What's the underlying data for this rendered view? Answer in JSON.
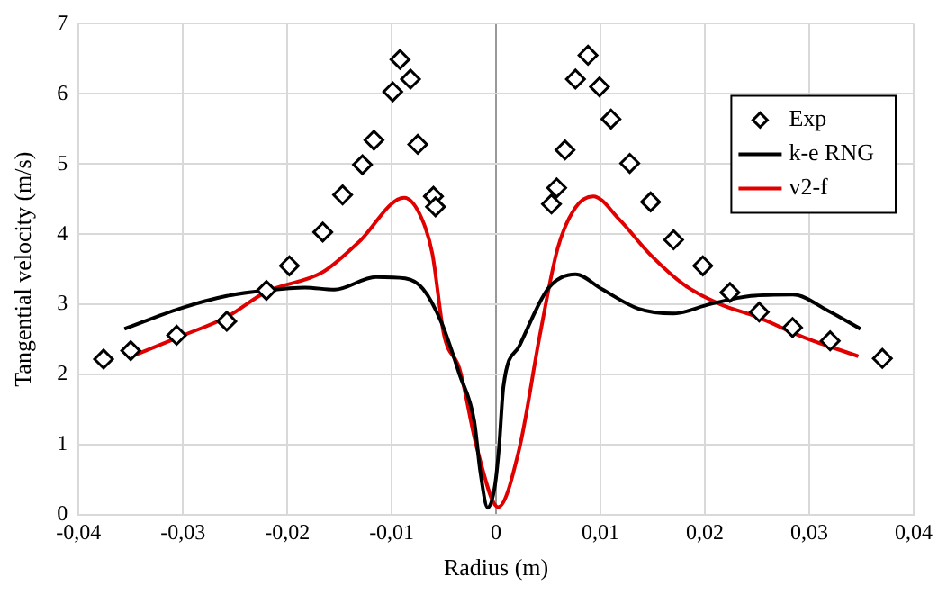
{
  "chart_data": {
    "type": "line",
    "xlabel": "Radius (m)",
    "ylabel": "Tangential velocity (m/s)",
    "xlim": [
      -0.04,
      0.04
    ],
    "xticks": [
      {
        "value": -0.04,
        "label": "-0,04"
      },
      {
        "value": -0.03,
        "label": "-0,03"
      },
      {
        "value": -0.02,
        "label": "-0,02"
      },
      {
        "value": -0.01,
        "label": "-0,01"
      },
      0,
      {
        "value": 0.01,
        "label": "0,01"
      },
      {
        "value": 0.02,
        "label": "0,02"
      },
      {
        "value": 0.03,
        "label": "0,03"
      },
      {
        "value": 0.04,
        "label": "0,04"
      }
    ],
    "ylim": [
      0,
      7
    ],
    "yticks": [
      0,
      1,
      2,
      3,
      4,
      5,
      6,
      7
    ],
    "grid": true,
    "legend": "top right",
    "series": [
      {
        "name": "Exp",
        "type": "scatter",
        "marker": "diamond",
        "color": "#000000",
        "x": [
          -0.0376,
          -0.035,
          -0.0306,
          -0.0258,
          -0.022,
          -0.0198,
          -0.0166,
          -0.0147,
          -0.0128,
          -0.0117,
          -0.0099,
          -0.0092,
          -0.0082,
          -0.0075,
          -0.006,
          -0.0058,
          0.0053,
          0.0058,
          0.0066,
          0.0076,
          0.0088,
          0.0099,
          0.011,
          0.0128,
          0.0148,
          0.017,
          0.0198,
          0.0224,
          0.0252,
          0.0284,
          0.032,
          0.037
        ],
        "values": [
          2.22,
          2.34,
          2.56,
          2.76,
          3.2,
          3.55,
          4.03,
          4.56,
          4.99,
          5.34,
          6.03,
          6.49,
          6.21,
          5.28,
          4.54,
          4.39,
          4.43,
          4.66,
          5.2,
          6.21,
          6.55,
          6.1,
          5.64,
          5.01,
          4.46,
          3.92,
          3.55,
          3.17,
          2.89,
          2.67,
          2.48,
          2.23
        ]
      },
      {
        "name": "k-e RNG",
        "marker": "none",
        "line_style": "solid",
        "color": "#000000",
        "x": [
          -0.0356,
          -0.0303,
          -0.0258,
          -0.022,
          -0.0183,
          -0.0155,
          -0.0115,
          -0.0087,
          -0.007,
          -0.0052,
          -0.0035,
          -0.0021,
          -0.0015,
          -0.0008,
          -0.0001,
          0.0003,
          0.0007,
          0.0022,
          0.005,
          0.0076,
          0.0101,
          0.0136,
          0.017,
          0.0204,
          0.0244,
          0.0284,
          0.0318,
          0.0349
        ],
        "values": [
          2.65,
          2.94,
          3.12,
          3.2,
          3.24,
          3.21,
          3.39,
          3.37,
          3.22,
          2.73,
          2.0,
          1.34,
          0.6,
          0.1,
          0.43,
          1.0,
          1.83,
          2.4,
          3.23,
          3.43,
          3.22,
          2.94,
          2.87,
          3.0,
          3.12,
          3.14,
          2.91,
          2.65
        ]
      },
      {
        "name": "v2-f",
        "marker": "none",
        "line_style": "solid",
        "color": "#e00000",
        "x": [
          -0.0349,
          -0.0303,
          -0.0258,
          -0.022,
          -0.0166,
          -0.0132,
          -0.0088,
          -0.0072,
          -0.0061,
          -0.005,
          -0.0035,
          -0.0018,
          0.0002,
          0.0022,
          0.0042,
          0.0059,
          0.0076,
          0.0093,
          0.0118,
          0.0147,
          0.0181,
          0.0215,
          0.025,
          0.0295,
          0.0347
        ],
        "values": [
          2.26,
          2.54,
          2.82,
          3.18,
          3.46,
          3.88,
          4.52,
          4.25,
          3.72,
          2.57,
          2.08,
          0.93,
          0.11,
          0.93,
          2.57,
          3.8,
          4.38,
          4.54,
          4.21,
          3.72,
          3.27,
          3.0,
          2.82,
          2.53,
          2.26
        ]
      }
    ]
  }
}
